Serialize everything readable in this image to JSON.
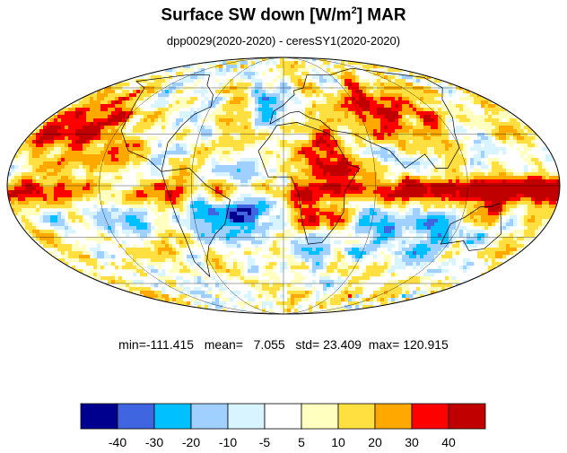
{
  "title": {
    "main": "Surface SW down [W/m",
    "sup": "2",
    "tail": "]  MAR"
  },
  "subtitle": "dpp0029(2020-2020) - ceresSY1(2020-2020)",
  "stats": {
    "min_label": "min=",
    "min": "-111.415",
    "mean_label": "mean=",
    "mean": "7.055",
    "std_label": "std=",
    "std": "23.409",
    "max_label": "max=",
    "max": "120.915"
  },
  "colorbar": {
    "colors": [
      "#00008f",
      "#3f66e0",
      "#00c0ff",
      "#a0d0ff",
      "#d8f4ff",
      "#ffffff",
      "#ffffc0",
      "#ffe040",
      "#ffa800",
      "#ff0000",
      "#c00000"
    ],
    "ticks": [
      "-40",
      "-30",
      "-20",
      "-10",
      "-5",
      "5",
      "10",
      "20",
      "30",
      "40"
    ]
  },
  "map": {
    "projection": "mollweide",
    "palette_note": "difference field rendered with the same 11-step palette as the colorbar"
  }
}
